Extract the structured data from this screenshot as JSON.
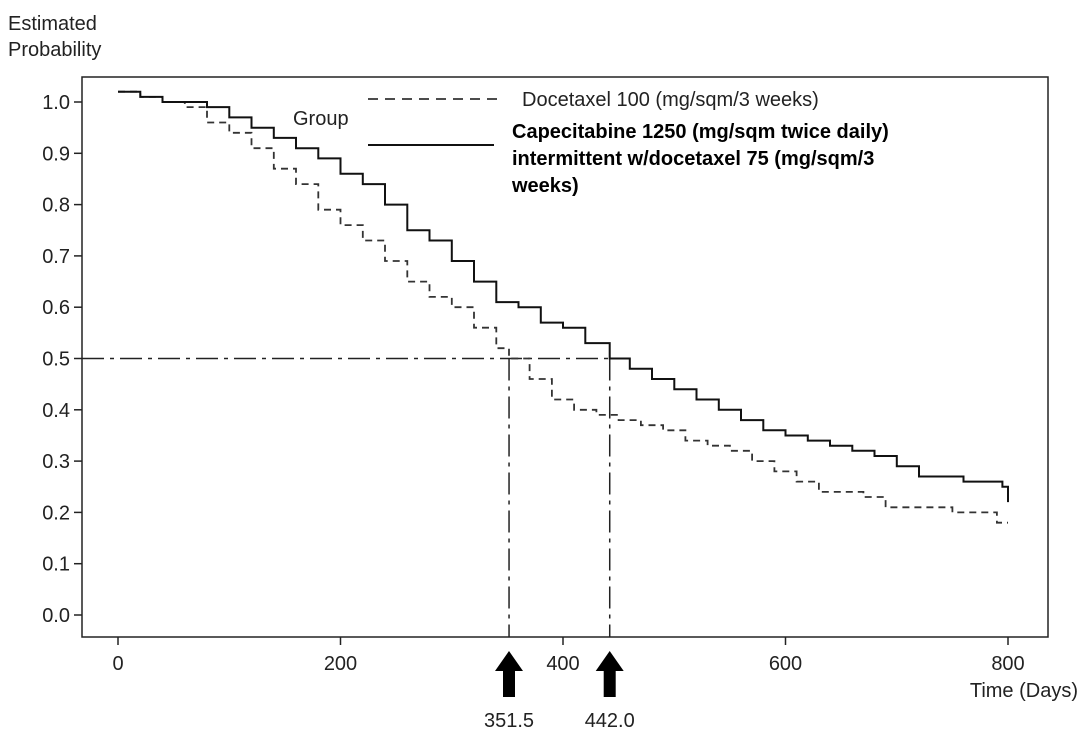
{
  "chart_data": {
    "type": "line",
    "ylabel_lines": [
      "Estimated",
      "Probability"
    ],
    "xlabel": "Time (Days)",
    "xlim": [
      0,
      800
    ],
    "ylim": [
      0.0,
      1.0
    ],
    "x_ticks": [
      0,
      200,
      400,
      600,
      800
    ],
    "y_ticks": [
      0.0,
      0.1,
      0.2,
      0.3,
      0.4,
      0.5,
      0.6,
      0.7,
      0.8,
      0.9,
      1.0
    ],
    "y_tick_labels": [
      "0.0",
      "0.1",
      "0.2",
      "0.3",
      "0.4",
      "0.5",
      "0.6",
      "0.7",
      "0.8",
      "0.9",
      "1.0"
    ],
    "grid": false,
    "legend": {
      "title": "Group",
      "placement": "top-right",
      "entries": [
        {
          "series": "docetaxel",
          "lines": [
            "Docetaxel 100 (mg/sqm/3 weeks)"
          ],
          "bold": false
        },
        {
          "series": "combo",
          "lines": [
            "Capecitabine 1250 (mg/sqm twice daily)",
            "intermittent w/docetaxel 75 (mg/sqm/3",
            "weeks)"
          ],
          "bold": true
        }
      ]
    },
    "series": [
      {
        "id": "docetaxel",
        "style": "dashed",
        "color": "#333333",
        "points": [
          [
            0,
            1.02
          ],
          [
            20,
            1.01
          ],
          [
            40,
            1.0
          ],
          [
            60,
            0.99
          ],
          [
            80,
            0.96
          ],
          [
            100,
            0.94
          ],
          [
            120,
            0.91
          ],
          [
            140,
            0.87
          ],
          [
            160,
            0.84
          ],
          [
            180,
            0.79
          ],
          [
            200,
            0.76
          ],
          [
            220,
            0.73
          ],
          [
            240,
            0.69
          ],
          [
            260,
            0.65
          ],
          [
            280,
            0.62
          ],
          [
            300,
            0.6
          ],
          [
            320,
            0.56
          ],
          [
            340,
            0.52
          ],
          [
            351.5,
            0.5
          ],
          [
            370,
            0.46
          ],
          [
            390,
            0.42
          ],
          [
            410,
            0.4
          ],
          [
            430,
            0.39
          ],
          [
            450,
            0.38
          ],
          [
            470,
            0.37
          ],
          [
            490,
            0.36
          ],
          [
            510,
            0.34
          ],
          [
            530,
            0.33
          ],
          [
            550,
            0.32
          ],
          [
            570,
            0.3
          ],
          [
            590,
            0.28
          ],
          [
            610,
            0.26
          ],
          [
            630,
            0.24
          ],
          [
            650,
            0.24
          ],
          [
            670,
            0.23
          ],
          [
            690,
            0.21
          ],
          [
            710,
            0.21
          ],
          [
            730,
            0.21
          ],
          [
            750,
            0.2
          ],
          [
            770,
            0.2
          ],
          [
            790,
            0.18
          ],
          [
            800,
            0.18
          ]
        ]
      },
      {
        "id": "combo",
        "style": "solid",
        "color": "#111111",
        "points": [
          [
            0,
            1.02
          ],
          [
            20,
            1.01
          ],
          [
            40,
            1.0
          ],
          [
            60,
            1.0
          ],
          [
            80,
            0.99
          ],
          [
            100,
            0.97
          ],
          [
            120,
            0.95
          ],
          [
            140,
            0.93
          ],
          [
            160,
            0.91
          ],
          [
            180,
            0.89
          ],
          [
            200,
            0.86
          ],
          [
            220,
            0.84
          ],
          [
            240,
            0.8
          ],
          [
            260,
            0.75
          ],
          [
            280,
            0.73
          ],
          [
            300,
            0.69
          ],
          [
            320,
            0.65
          ],
          [
            340,
            0.61
          ],
          [
            360,
            0.6
          ],
          [
            380,
            0.57
          ],
          [
            400,
            0.56
          ],
          [
            420,
            0.53
          ],
          [
            442,
            0.5
          ],
          [
            460,
            0.48
          ],
          [
            480,
            0.46
          ],
          [
            500,
            0.44
          ],
          [
            520,
            0.42
          ],
          [
            540,
            0.4
          ],
          [
            560,
            0.38
          ],
          [
            580,
            0.36
          ],
          [
            600,
            0.35
          ],
          [
            620,
            0.34
          ],
          [
            640,
            0.33
          ],
          [
            660,
            0.32
          ],
          [
            680,
            0.31
          ],
          [
            700,
            0.29
          ],
          [
            720,
            0.27
          ],
          [
            740,
            0.27
          ],
          [
            760,
            0.26
          ],
          [
            780,
            0.26
          ],
          [
            795,
            0.25
          ],
          [
            800,
            0.22
          ]
        ]
      }
    ],
    "reference_line": {
      "y": 0.5,
      "style": "dash-dot"
    },
    "annotations": [
      {
        "x": 351.5,
        "label": "351.5",
        "arrow": "up"
      },
      {
        "x": 442,
        "label": "442.0",
        "arrow": "up"
      }
    ]
  }
}
